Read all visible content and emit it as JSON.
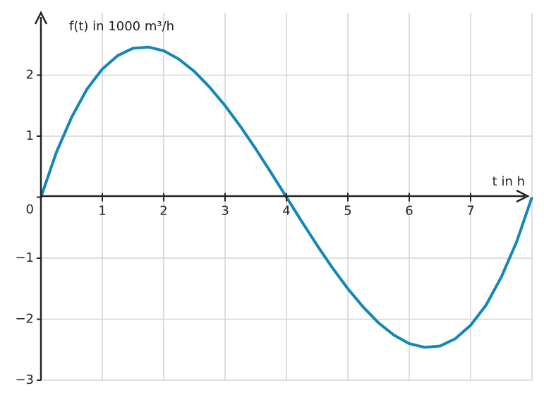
{
  "chart_data": {
    "type": "line",
    "x_label": "t in h",
    "y_label": "f(t) in 1000 m³/h",
    "x": [
      0,
      0.25,
      0.5,
      0.75,
      1,
      1.25,
      1.5,
      1.75,
      2,
      2.25,
      2.5,
      2.75,
      3,
      3.25,
      3.5,
      3.75,
      4,
      4.25,
      4.5,
      4.75,
      5,
      5.25,
      5.5,
      5.75,
      6,
      6.25,
      6.5,
      6.75,
      7,
      7.25,
      7.5,
      7.75,
      8
    ],
    "series": [
      {
        "color": "#1287b8",
        "values": [
          0,
          0.73,
          1.31,
          1.77,
          2.1,
          2.32,
          2.44,
          2.46,
          2.4,
          2.26,
          2.06,
          1.8,
          1.5,
          1.16,
          0.79,
          0.4,
          0,
          -0.4,
          -0.79,
          -1.16,
          -1.5,
          -1.8,
          -2.06,
          -2.26,
          -2.4,
          -2.46,
          -2.44,
          -2.32,
          -2.1,
          -1.77,
          -1.31,
          -0.73,
          0
        ]
      }
    ],
    "xlim": [
      0,
      8
    ],
    "ylim": [
      -3,
      3
    ],
    "xticks": [
      1,
      2,
      3,
      4,
      5,
      6,
      7
    ],
    "yticks": [
      {
        "value": -3,
        "label": "−3"
      },
      {
        "value": -2,
        "label": "−2"
      },
      {
        "value": -1,
        "label": "−1"
      },
      0,
      1,
      2
    ],
    "grid": true
  }
}
